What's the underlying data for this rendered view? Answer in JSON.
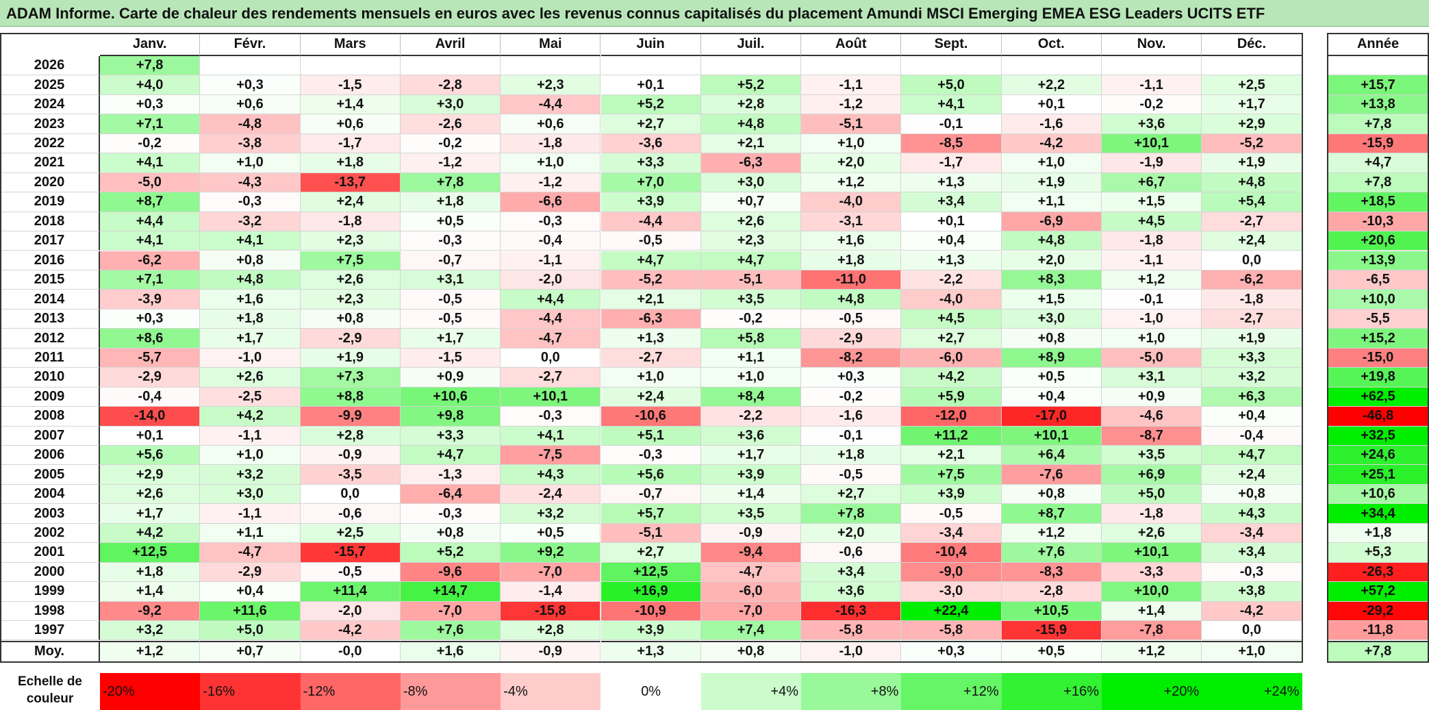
{
  "title": "ADAM Informe. Carte de chaleur des rendements mensuels en euros avec les revenus connus capitalisés du placement Amundi MSCI Emerging EMEA ESG Leaders UCITS ETF",
  "chart_data": {
    "type": "heatmap",
    "title": "ADAM Informe. Carte de chaleur des rendements mensuels en euros avec les revenus connus capitalisés du placement Amundi MSCI Emerging EMEA ESG Leaders UCITS ETF",
    "columns": [
      "Janv.",
      "Févr.",
      "Mars",
      "Avril",
      "Mai",
      "Juin",
      "Juil.",
      "Août",
      "Sept.",
      "Oct.",
      "Nov.",
      "Déc."
    ],
    "year_column_label": "Année",
    "rows": [
      {
        "year": "2026",
        "values": [
          "+7,8",
          "",
          "",
          "",
          "",
          "",
          "",
          "",
          "",
          "",
          "",
          ""
        ],
        "annual": ""
      },
      {
        "year": "2025",
        "values": [
          "+4,0",
          "+0,3",
          "-1,5",
          "-2,8",
          "+2,3",
          "+0,1",
          "+5,2",
          "-1,1",
          "+5,0",
          "+2,2",
          "-1,1",
          "+2,5"
        ],
        "annual": "+15,7"
      },
      {
        "year": "2024",
        "values": [
          "+0,3",
          "+0,6",
          "+1,4",
          "+3,0",
          "-4,4",
          "+5,2",
          "+2,8",
          "-1,2",
          "+4,1",
          "+0,1",
          "-0,2",
          "+1,7"
        ],
        "annual": "+13,8"
      },
      {
        "year": "2023",
        "values": [
          "+7,1",
          "-4,8",
          "+0,6",
          "-2,6",
          "+0,6",
          "+2,7",
          "+4,8",
          "-5,1",
          "-0,1",
          "-1,6",
          "+3,6",
          "+2,9"
        ],
        "annual": "+7,8"
      },
      {
        "year": "2022",
        "values": [
          "-0,2",
          "-3,8",
          "-1,7",
          "-0,2",
          "-1,8",
          "-3,6",
          "+2,1",
          "+1,0",
          "-8,5",
          "-4,2",
          "+10,1",
          "-5,2"
        ],
        "annual": "-15,9"
      },
      {
        "year": "2021",
        "values": [
          "+4,1",
          "+1,0",
          "+1,8",
          "-1,2",
          "+1,0",
          "+3,3",
          "-6,3",
          "+2,0",
          "-1,7",
          "+1,0",
          "-1,9",
          "+1,9"
        ],
        "annual": "+4,7"
      },
      {
        "year": "2020",
        "values": [
          "-5,0",
          "-4,3",
          "-13,7",
          "+7,8",
          "-1,2",
          "+7,0",
          "+3,0",
          "+1,2",
          "+1,3",
          "+1,9",
          "+6,7",
          "+4,8"
        ],
        "annual": "+7,8"
      },
      {
        "year": "2019",
        "values": [
          "+8,7",
          "-0,3",
          "+2,4",
          "+1,8",
          "-6,6",
          "+3,9",
          "+0,7",
          "-4,0",
          "+3,4",
          "+1,1",
          "+1,5",
          "+5,4"
        ],
        "annual": "+18,5"
      },
      {
        "year": "2018",
        "values": [
          "+4,4",
          "-3,2",
          "-1,8",
          "+0,5",
          "-0,3",
          "-4,4",
          "+2,6",
          "-3,1",
          "+0,1",
          "-6,9",
          "+4,5",
          "-2,7"
        ],
        "annual": "-10,3"
      },
      {
        "year": "2017",
        "values": [
          "+4,1",
          "+4,1",
          "+2,3",
          "-0,3",
          "-0,4",
          "-0,5",
          "+2,3",
          "+1,6",
          "+0,4",
          "+4,8",
          "-1,8",
          "+2,4"
        ],
        "annual": "+20,6"
      },
      {
        "year": "2016",
        "values": [
          "-6,2",
          "+0,8",
          "+7,5",
          "-0,7",
          "-1,1",
          "+4,7",
          "+4,7",
          "+1,8",
          "+1,3",
          "+2,0",
          "-1,1",
          "0,0"
        ],
        "annual": "+13,9"
      },
      {
        "year": "2015",
        "values": [
          "+7,1",
          "+4,8",
          "+2,6",
          "+3,1",
          "-2,0",
          "-5,2",
          "-5,1",
          "-11,0",
          "-2,2",
          "+8,3",
          "+1,2",
          "-6,2"
        ],
        "annual": "-6,5"
      },
      {
        "year": "2014",
        "values": [
          "-3,9",
          "+1,6",
          "+2,3",
          "-0,5",
          "+4,4",
          "+2,1",
          "+3,5",
          "+4,8",
          "-4,0",
          "+1,5",
          "-0,1",
          "-1,8"
        ],
        "annual": "+10,0"
      },
      {
        "year": "2013",
        "values": [
          "+0,3",
          "+1,8",
          "+0,8",
          "-0,5",
          "-4,4",
          "-6,3",
          "-0,2",
          "-0,5",
          "+4,5",
          "+3,0",
          "-1,0",
          "-2,7"
        ],
        "annual": "-5,5"
      },
      {
        "year": "2012",
        "values": [
          "+8,6",
          "+1,7",
          "-2,9",
          "+1,7",
          "-4,7",
          "+1,3",
          "+5,8",
          "-2,9",
          "+2,7",
          "+0,8",
          "+1,0",
          "+1,9"
        ],
        "annual": "+15,2"
      },
      {
        "year": "2011",
        "values": [
          "-5,7",
          "-1,0",
          "+1,9",
          "-1,5",
          "0,0",
          "-2,7",
          "+1,1",
          "-8,2",
          "-6,0",
          "+8,9",
          "-5,0",
          "+3,3"
        ],
        "annual": "-15,0"
      },
      {
        "year": "2010",
        "values": [
          "-2,9",
          "+2,6",
          "+7,3",
          "+0,9",
          "-2,7",
          "+1,0",
          "+1,0",
          "+0,3",
          "+4,2",
          "+0,5",
          "+3,1",
          "+3,2"
        ],
        "annual": "+19,8"
      },
      {
        "year": "2009",
        "values": [
          "-0,4",
          "-2,5",
          "+8,8",
          "+10,6",
          "+10,1",
          "+2,4",
          "+8,4",
          "-0,2",
          "+5,9",
          "+0,4",
          "+0,9",
          "+6,3"
        ],
        "annual": "+62,5"
      },
      {
        "year": "2008",
        "values": [
          "-14,0",
          "+4,2",
          "-9,9",
          "+9,8",
          "-0,3",
          "-10,6",
          "-2,2",
          "-1,6",
          "-12,0",
          "-17,0",
          "-4,6",
          "+0,4"
        ],
        "annual": "-46,8"
      },
      {
        "year": "2007",
        "values": [
          "+0,1",
          "-1,1",
          "+2,8",
          "+3,3",
          "+4,1",
          "+5,1",
          "+3,6",
          "-0,1",
          "+11,2",
          "+10,1",
          "-8,7",
          "-0,4"
        ],
        "annual": "+32,5"
      },
      {
        "year": "2006",
        "values": [
          "+5,6",
          "+1,0",
          "-0,9",
          "+4,7",
          "-7,5",
          "-0,3",
          "+1,7",
          "+1,8",
          "+2,1",
          "+6,4",
          "+3,5",
          "+4,7"
        ],
        "annual": "+24,6"
      },
      {
        "year": "2005",
        "values": [
          "+2,9",
          "+3,2",
          "-3,5",
          "-1,3",
          "+4,3",
          "+5,6",
          "+3,9",
          "-0,5",
          "+7,5",
          "-7,6",
          "+6,9",
          "+2,4"
        ],
        "annual": "+25,1"
      },
      {
        "year": "2004",
        "values": [
          "+2,6",
          "+3,0",
          "0,0",
          "-6,4",
          "-2,4",
          "-0,7",
          "+1,4",
          "+2,7",
          "+3,9",
          "+0,8",
          "+5,0",
          "+0,8"
        ],
        "annual": "+10,6"
      },
      {
        "year": "2003",
        "values": [
          "+1,7",
          "-1,1",
          "-0,6",
          "-0,3",
          "+3,2",
          "+5,7",
          "+3,5",
          "+7,8",
          "-0,5",
          "+8,7",
          "-1,8",
          "+4,3"
        ],
        "annual": "+34,4"
      },
      {
        "year": "2002",
        "values": [
          "+4,2",
          "+1,1",
          "+2,5",
          "+0,8",
          "+0,5",
          "-5,1",
          "-0,9",
          "+2,0",
          "-3,4",
          "+1,2",
          "+2,6",
          "-3,4"
        ],
        "annual": "+1,8"
      },
      {
        "year": "2001",
        "values": [
          "+12,5",
          "-4,7",
          "-15,7",
          "+5,2",
          "+9,2",
          "+2,7",
          "-9,4",
          "-0,6",
          "-10,4",
          "+7,6",
          "+10,1",
          "+3,4"
        ],
        "annual": "+5,3"
      },
      {
        "year": "2000",
        "values": [
          "+1,8",
          "-2,9",
          "-0,5",
          "-9,6",
          "-7,0",
          "+12,5",
          "-4,7",
          "+3,4",
          "-9,0",
          "-8,3",
          "-3,3",
          "-0,3"
        ],
        "annual": "-26,3"
      },
      {
        "year": "1999",
        "values": [
          "+1,4",
          "+0,4",
          "+11,4",
          "+14,7",
          "-1,4",
          "+16,9",
          "-6,0",
          "+3,6",
          "-3,0",
          "-2,8",
          "+10,0",
          "+3,8"
        ],
        "annual": "+57,2"
      },
      {
        "year": "1998",
        "values": [
          "-9,2",
          "+11,6",
          "-2,0",
          "-7,0",
          "-15,8",
          "-10,9",
          "-7,0",
          "-16,3",
          "+22,4",
          "+10,5",
          "+1,4",
          "-4,2"
        ],
        "annual": "-29,2"
      },
      {
        "year": "1997",
        "values": [
          "+3,2",
          "+5,0",
          "-4,2",
          "+7,6",
          "+2,8",
          "+3,9",
          "+7,4",
          "-5,8",
          "-5,8",
          "-15,9",
          "-7,8",
          "0,0"
        ],
        "annual": "-11,8"
      }
    ],
    "average": {
      "label": "Moy.",
      "values": [
        "+1,2",
        "+0,7",
        "-0,0",
        "+1,6",
        "-0,9",
        "+1,3",
        "+0,8",
        "-1,0",
        "+0,3",
        "+0,5",
        "+1,2",
        "+1,0"
      ],
      "annual": "+7,8"
    },
    "scale": {
      "label_line1": "Echelle de",
      "label_line2": "couleur",
      "stops": [
        "-20%",
        "-16%",
        "-12%",
        "-8%",
        "-4%",
        "0%",
        "+4%",
        "+8%",
        "+12%",
        "+16%",
        "+20%",
        "+24%"
      ]
    },
    "colors": {
      "negative": "#ff0000",
      "neutral": "#ffffff",
      "positive": "#00ee00"
    }
  }
}
